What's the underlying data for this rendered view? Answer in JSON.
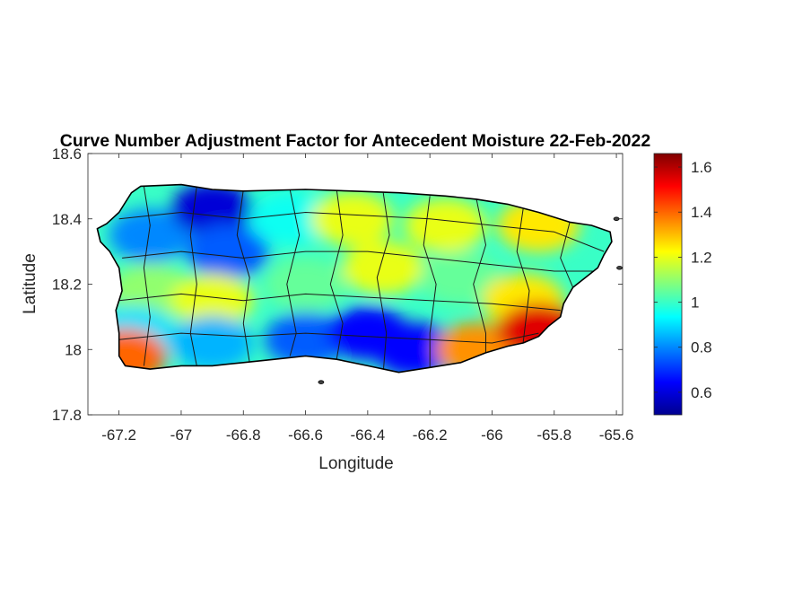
{
  "chart_data": {
    "type": "heatmap",
    "title": "Curve Number Adjustment Factor for Antecedent Moisture 22-Feb-2022",
    "xlabel": "Longitude",
    "ylabel": "Latitude",
    "xlim": [
      -67.3,
      -65.58
    ],
    "ylim": [
      17.8,
      18.6
    ],
    "xticks": [
      -67.2,
      -67,
      -66.8,
      -66.6,
      -66.4,
      -66.2,
      -66,
      -65.8,
      -65.6
    ],
    "xtick_labels": [
      "-67.2",
      "-67",
      "-66.8",
      "-66.6",
      "-66.4",
      "-66.2",
      "-66",
      "-65.8",
      "-65.6"
    ],
    "yticks": [
      17.8,
      18,
      18.2,
      18.4,
      18.6
    ],
    "ytick_labels": [
      "17.8",
      "18",
      "18.2",
      "18.4",
      "18.6"
    ],
    "colorbar": {
      "colormap": "jet",
      "clim": [
        0.5,
        1.66
      ],
      "ticks": [
        0.6,
        0.8,
        1,
        1.2,
        1.4,
        1.6
      ],
      "tick_labels": [
        "0.6",
        "0.8",
        "1",
        "1.2",
        "1.4",
        "1.6"
      ]
    },
    "regions": [
      {
        "lon": -67.1,
        "lat": 18.35,
        "value": 0.8
      },
      {
        "lon": -66.9,
        "lat": 18.43,
        "value": 0.6
      },
      {
        "lon": -66.85,
        "lat": 18.3,
        "value": 0.75
      },
      {
        "lon": -66.65,
        "lat": 18.4,
        "value": 0.95
      },
      {
        "lon": -66.45,
        "lat": 18.4,
        "value": 1.2
      },
      {
        "lon": -66.15,
        "lat": 18.38,
        "value": 1.2
      },
      {
        "lon": -65.85,
        "lat": 18.38,
        "value": 1.25
      },
      {
        "lon": -67.1,
        "lat": 18.18,
        "value": 1.1
      },
      {
        "lon": -66.9,
        "lat": 18.15,
        "value": 1.2
      },
      {
        "lon": -66.6,
        "lat": 18.2,
        "value": 1.05
      },
      {
        "lon": -66.35,
        "lat": 18.25,
        "value": 1.2
      },
      {
        "lon": -66.1,
        "lat": 18.22,
        "value": 1.05
      },
      {
        "lon": -65.9,
        "lat": 18.15,
        "value": 1.25
      },
      {
        "lon": -67.15,
        "lat": 18.05,
        "value": 0.9
      },
      {
        "lon": -66.9,
        "lat": 18.02,
        "value": 0.85
      },
      {
        "lon": -66.6,
        "lat": 18.03,
        "value": 0.75
      },
      {
        "lon": -66.4,
        "lat": 18.05,
        "value": 0.65
      },
      {
        "lon": -66.25,
        "lat": 18.0,
        "value": 0.65
      },
      {
        "lon": -66.05,
        "lat": 18.0,
        "value": 1.35
      },
      {
        "lon": -65.85,
        "lat": 18.06,
        "value": 1.55
      },
      {
        "lon": -67.18,
        "lat": 17.98,
        "value": 1.4
      }
    ]
  }
}
